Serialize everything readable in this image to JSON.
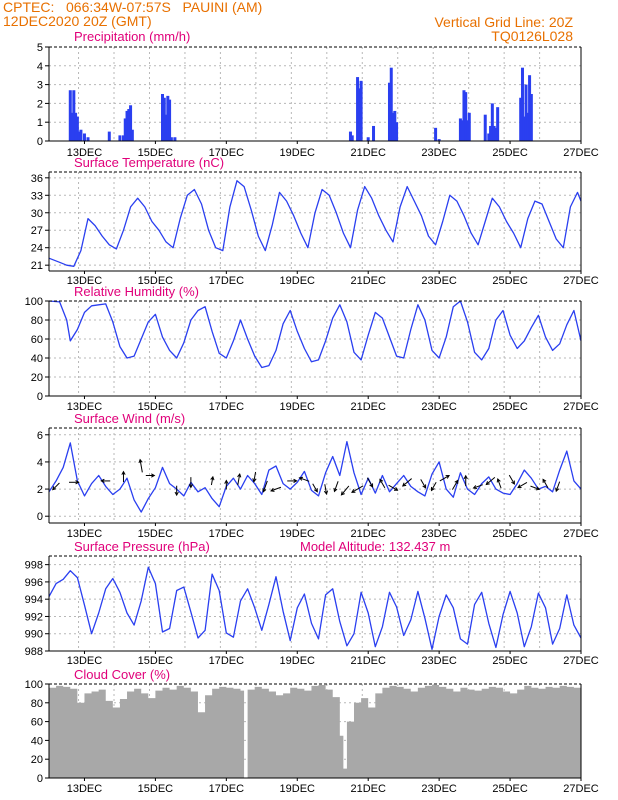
{
  "header": {
    "line1_left": "CPTEC:   066:34W-07:57S   PAUINI (AM)",
    "line2_left": "12DEC2020 20Z (GMT)",
    "line1_right": "Vertical Grid Line: 20Z",
    "line2_right": "TQ0126L028"
  },
  "colors": {
    "header_text": "#e87000",
    "panel_title": "#e0007a",
    "series_line": "#2a3ff0",
    "precip_bar": "#2a3ff0",
    "cloud_fill": "#a8a8a8",
    "grid": "#b8b8b8",
    "wind_arrow": "#000000"
  },
  "x_axis": {
    "unit": "days (December 2020)",
    "start_day": 12.0,
    "end_day": 27.0,
    "tick_days": [
      13,
      15,
      17,
      19,
      21,
      23,
      25,
      27
    ],
    "tick_labels": [
      "13DEC",
      "15DEC",
      "17DEC",
      "19DEC",
      "21DEC",
      "23DEC",
      "25DEC",
      "27DEC"
    ],
    "vertical_grid_days": [
      12.833,
      13.833,
      14.833,
      15.833,
      16.833,
      17.833,
      18.833,
      19.833,
      20.833,
      21.833,
      22.833,
      23.833,
      24.833,
      25.833
    ]
  },
  "chart_data": [
    {
      "id": "precip",
      "type": "bar",
      "title": "Precipitation (mm/h)",
      "ylim": [
        0,
        5
      ],
      "yticks": [
        0,
        1,
        2,
        3,
        4,
        5
      ],
      "grid": true,
      "x": [
        12.6,
        12.65,
        12.7,
        12.75,
        12.8,
        12.85,
        12.9,
        13.0,
        13.1,
        13.7,
        14.0,
        14.1,
        14.15,
        14.2,
        14.25,
        14.3,
        14.35,
        15.2,
        15.25,
        15.3,
        15.35,
        15.4,
        15.45,
        15.55,
        20.5,
        20.55,
        20.7,
        20.75,
        20.8,
        21.0,
        21.15,
        21.6,
        21.65,
        21.7,
        21.75,
        21.8,
        22.9,
        23.0,
        23.6,
        23.65,
        23.7,
        23.75,
        23.8,
        23.85,
        24.3,
        24.4,
        24.45,
        24.5,
        24.55,
        24.6,
        24.65,
        25.3,
        25.35,
        25.4,
        25.45,
        25.5,
        25.55,
        25.6
      ],
      "values": [
        2.7,
        1.5,
        2.7,
        1.5,
        1.3,
        0.5,
        0.6,
        0.4,
        0.2,
        0.5,
        0.3,
        0.3,
        1.2,
        1.6,
        1.7,
        1.9,
        0.6,
        2.5,
        2.3,
        1.4,
        2.4,
        2.2,
        0.2,
        0.2,
        0.5,
        0.3,
        3.4,
        2.8,
        3.2,
        0.2,
        0.8,
        3.1,
        3.9,
        1.5,
        1.6,
        1.0,
        0.7,
        0.1,
        1.2,
        1.1,
        2.7,
        2.6,
        1.1,
        1.5,
        1.4,
        0.4,
        0.8,
        2.0,
        0.8,
        0.7,
        1.8,
        2.3,
        3.9,
        1.3,
        3.0,
        1.5,
        3.5,
        2.5
      ]
    },
    {
      "id": "temperature",
      "type": "line",
      "title": "Surface Temperature (nC)",
      "ylim": [
        20,
        37
      ],
      "yticks": [
        21,
        24,
        27,
        30,
        33,
        36
      ],
      "grid": true,
      "x": [
        12.0,
        12.3,
        12.5,
        12.7,
        12.9,
        13.1,
        13.3,
        13.5,
        13.7,
        13.9,
        14.1,
        14.3,
        14.5,
        14.7,
        14.9,
        15.1,
        15.3,
        15.5,
        15.7,
        15.9,
        16.1,
        16.3,
        16.5,
        16.7,
        16.9,
        17.1,
        17.3,
        17.5,
        17.7,
        17.9,
        18.1,
        18.3,
        18.5,
        18.7,
        18.9,
        19.1,
        19.3,
        19.5,
        19.7,
        19.9,
        20.1,
        20.3,
        20.5,
        20.7,
        20.9,
        21.1,
        21.3,
        21.5,
        21.7,
        21.9,
        22.1,
        22.3,
        22.5,
        22.7,
        22.9,
        23.1,
        23.3,
        23.5,
        23.7,
        23.9,
        24.1,
        24.3,
        24.5,
        24.7,
        24.9,
        25.1,
        25.3,
        25.5,
        25.7,
        25.9,
        26.1,
        26.3,
        26.5,
        26.7,
        26.9,
        27.0
      ],
      "values": [
        22.2,
        21.5,
        21.0,
        20.8,
        23.5,
        29.0,
        27.8,
        26.0,
        24.5,
        23.8,
        27.0,
        31.0,
        32.5,
        31.0,
        28.5,
        27.0,
        25.0,
        24.0,
        29.0,
        33.0,
        34.0,
        31.5,
        27.0,
        24.0,
        23.5,
        31.0,
        35.5,
        34.5,
        30.5,
        26.0,
        23.5,
        28.0,
        33.5,
        32.0,
        29.5,
        26.5,
        24.0,
        30.0,
        34.0,
        33.0,
        30.0,
        26.5,
        24.0,
        30.5,
        34.5,
        32.5,
        29.5,
        27.0,
        25.0,
        31.0,
        34.5,
        32.0,
        29.5,
        26.0,
        24.5,
        28.5,
        33.0,
        32.0,
        29.5,
        26.5,
        24.5,
        28.5,
        32.5,
        31.0,
        28.5,
        26.5,
        24.0,
        29.0,
        32.0,
        31.5,
        28.5,
        25.5,
        24.0,
        31.0,
        33.5,
        32.0
      ]
    },
    {
      "id": "humidity",
      "type": "line",
      "title": "Relative Humidity (%)",
      "ylim": [
        0,
        100
      ],
      "yticks": [
        0,
        20,
        40,
        60,
        80,
        100
      ],
      "grid": true,
      "x": [
        12.0,
        12.3,
        12.5,
        12.6,
        12.8,
        13.0,
        13.2,
        13.4,
        13.6,
        13.8,
        14.0,
        14.2,
        14.4,
        14.6,
        14.8,
        15.0,
        15.2,
        15.4,
        15.6,
        15.8,
        16.0,
        16.2,
        16.4,
        16.6,
        16.8,
        17.0,
        17.2,
        17.4,
        17.6,
        17.8,
        18.0,
        18.2,
        18.4,
        18.6,
        18.8,
        19.0,
        19.2,
        19.4,
        19.6,
        19.8,
        20.0,
        20.2,
        20.4,
        20.6,
        20.8,
        21.0,
        21.2,
        21.4,
        21.6,
        21.8,
        22.0,
        22.2,
        22.4,
        22.6,
        22.8,
        23.0,
        23.2,
        23.4,
        23.6,
        23.8,
        24.0,
        24.2,
        24.4,
        24.6,
        24.8,
        25.0,
        25.2,
        25.4,
        25.6,
        25.8,
        26.0,
        26.2,
        26.4,
        26.6,
        26.8,
        27.0
      ],
      "values": [
        100,
        99,
        80,
        58,
        70,
        88,
        95,
        96,
        97,
        78,
        52,
        40,
        42,
        60,
        78,
        86,
        62,
        48,
        40,
        56,
        80,
        90,
        94,
        68,
        45,
        40,
        58,
        80,
        60,
        42,
        30,
        32,
        48,
        76,
        90,
        68,
        50,
        36,
        38,
        58,
        82,
        96,
        78,
        46,
        38,
        64,
        88,
        82,
        62,
        42,
        40,
        70,
        96,
        80,
        48,
        40,
        62,
        94,
        100,
        78,
        46,
        38,
        50,
        80,
        90,
        64,
        50,
        58,
        72,
        85,
        62,
        48,
        55,
        75,
        90,
        58
      ],
      "x2": [
        13.95,
        15.65,
        17.1,
        18.3,
        19.35,
        20.6,
        21.5,
        22.5,
        23.55,
        24.3,
        25.6,
        26.4,
        26.8
      ],
      "values2": [
        54,
        56,
        44,
        34,
        38,
        42,
        50,
        40,
        46,
        54,
        52,
        38,
        40
      ]
    },
    {
      "id": "wind",
      "type": "line",
      "title": "Surface Wind (m/s)",
      "ylim": [
        -0.5,
        6.5
      ],
      "yticks": [
        0,
        2,
        4,
        6
      ],
      "grid": true,
      "x": [
        12.0,
        12.2,
        12.4,
        12.6,
        12.8,
        13.0,
        13.2,
        13.4,
        13.6,
        13.8,
        14.0,
        14.2,
        14.4,
        14.6,
        14.8,
        15.0,
        15.2,
        15.4,
        15.6,
        15.8,
        16.0,
        16.2,
        16.4,
        16.6,
        16.8,
        17.0,
        17.2,
        17.4,
        17.6,
        17.8,
        18.0,
        18.2,
        18.4,
        18.6,
        18.8,
        19.0,
        19.2,
        19.4,
        19.6,
        19.8,
        20.0,
        20.2,
        20.4,
        20.6,
        20.8,
        21.0,
        21.2,
        21.4,
        21.6,
        21.8,
        22.0,
        22.2,
        22.4,
        22.6,
        22.8,
        23.0,
        23.2,
        23.4,
        23.6,
        23.8,
        24.0,
        24.2,
        24.4,
        24.6,
        24.8,
        25.0,
        25.2,
        25.4,
        25.6,
        25.8,
        26.0,
        26.2,
        26.4,
        26.6,
        26.8,
        27.0
      ],
      "values": [
        1.8,
        2.6,
        3.6,
        5.4,
        2.6,
        1.5,
        2.4,
        3.0,
        2.2,
        1.6,
        2.0,
        2.8,
        1.2,
        0.3,
        1.3,
        2.1,
        3.6,
        2.4,
        2.0,
        1.5,
        2.5,
        1.8,
        2.1,
        1.3,
        0.7,
        2.2,
        2.8,
        2.0,
        3.0,
        2.4,
        1.6,
        3.4,
        3.7,
        2.4,
        2.0,
        2.5,
        3.3,
        1.9,
        1.5,
        3.2,
        4.4,
        3.0,
        5.5,
        3.2,
        1.6,
        2.8,
        1.7,
        3.0,
        1.8,
        2.4,
        3.0,
        2.2,
        1.8,
        1.5,
        3.1,
        4.0,
        2.0,
        1.4,
        3.2,
        2.0,
        1.6,
        2.4,
        2.9,
        2.0,
        1.7,
        1.6,
        2.4,
        3.4,
        2.8,
        2.0,
        2.2,
        1.8,
        3.4,
        4.8,
        2.6,
        2.0
      ],
      "arrows_x": [
        12.2,
        12.7,
        13.6,
        14.1,
        14.6,
        14.85,
        15.6,
        16.0,
        16.6,
        17.0,
        17.35,
        17.8,
        18.1,
        18.4,
        18.85,
        19.2,
        19.5,
        19.8,
        20.1,
        20.35,
        20.7,
        21.05,
        21.4,
        21.7,
        22.1,
        22.55,
        22.85,
        23.15,
        23.45,
        23.75,
        24.1,
        24.45,
        24.7,
        25.05,
        25.35,
        25.7,
        26.0,
        26.35
      ],
      "arrows_y": [
        2.2,
        2.5,
        2.6,
        2.9,
        3.7,
        3.0,
        1.9,
        2.5,
        2.6,
        2.3,
        2.7,
        2.9,
        2.2,
        2.0,
        2.6,
        2.7,
        2.1,
        2.0,
        2.2,
        1.9,
        2.0,
        2.5,
        2.4,
        2.1,
        2.5,
        2.4,
        2.2,
        2.8,
        2.3,
        2.6,
        2.2,
        2.6,
        2.4,
        2.7,
        2.3,
        2.1,
        2.4,
        2.2
      ],
      "arrows_dir_deg": [
        225,
        0,
        180,
        90,
        100,
        0,
        270,
        270,
        80,
        90,
        80,
        260,
        250,
        200,
        0,
        160,
        300,
        280,
        250,
        230,
        210,
        300,
        120,
        330,
        220,
        300,
        240,
        30,
        60,
        90,
        200,
        220,
        110,
        300,
        210,
        340,
        120,
        250
      ],
      "arrows_speed": [
        2.0,
        2.1,
        1.8,
        2.5,
        3.6,
        1.6,
        2.0,
        2.4,
        1.5,
        1.8,
        2.8,
        2.2,
        3.0,
        2.5,
        2.0,
        2.4,
        1.9,
        2.2,
        2.6,
        3.0,
        3.6,
        2.5,
        2.2,
        2.4,
        3.0,
        2.2,
        2.0,
        2.6,
        2.6,
        2.4,
        2.2,
        2.8,
        2.2,
        2.4,
        2.4,
        2.0,
        2.2,
        2.3
      ]
    },
    {
      "id": "pressure",
      "type": "line",
      "title": "Surface Pressure (hPa)",
      "annotation": "Model Altitude: 132.437 m",
      "ylim": [
        988,
        999
      ],
      "yticks": [
        988,
        990,
        992,
        994,
        996,
        998
      ],
      "grid": true,
      "x": [
        12.0,
        12.2,
        12.4,
        12.6,
        12.8,
        13.0,
        13.2,
        13.4,
        13.6,
        13.8,
        14.0,
        14.2,
        14.4,
        14.6,
        14.8,
        15.0,
        15.2,
        15.4,
        15.6,
        15.8,
        16.0,
        16.2,
        16.4,
        16.6,
        16.8,
        17.0,
        17.2,
        17.4,
        17.6,
        17.8,
        18.0,
        18.2,
        18.4,
        18.6,
        18.8,
        19.0,
        19.2,
        19.4,
        19.6,
        19.8,
        20.0,
        20.2,
        20.4,
        20.6,
        20.8,
        21.0,
        21.2,
        21.4,
        21.6,
        21.8,
        22.0,
        22.2,
        22.4,
        22.6,
        22.8,
        23.0,
        23.2,
        23.4,
        23.6,
        23.8,
        24.0,
        24.2,
        24.4,
        24.6,
        24.8,
        25.0,
        25.2,
        25.4,
        25.6,
        25.8,
        26.0,
        26.2,
        26.4,
        26.6,
        26.8,
        27.0
      ],
      "values": [
        994.3,
        995.8,
        996.3,
        997.3,
        996.5,
        993.3,
        990.0,
        992.4,
        995.2,
        996.4,
        994.8,
        992.4,
        991.0,
        993.8,
        997.7,
        995.8,
        990.2,
        990.6,
        995.0,
        995.4,
        992.5,
        989.5,
        990.4,
        996.9,
        995.0,
        990.1,
        989.6,
        993.8,
        995.2,
        993.0,
        990.4,
        993.4,
        996.6,
        992.6,
        989.2,
        993.0,
        994.6,
        991.2,
        989.4,
        994.5,
        995.2,
        991.4,
        988.6,
        990.0,
        994.8,
        992.4,
        988.5,
        990.8,
        994.8,
        993.1,
        989.8,
        991.6,
        994.9,
        991.8,
        988.2,
        992.0,
        994.5,
        993.0,
        989.4,
        988.8,
        993.4,
        994.8,
        991.2,
        988.4,
        992.2,
        994.9,
        992.4,
        988.5,
        990.8,
        994.7,
        993.0,
        988.8,
        990.6,
        994.5,
        991.0,
        989.5
      ]
    },
    {
      "id": "cloud",
      "type": "area",
      "title": "Cloud Cover (%)",
      "ylim": [
        0,
        100
      ],
      "yticks": [
        0,
        20,
        40,
        60,
        80,
        100
      ],
      "grid": true,
      "x": [
        12.0,
        12.2,
        12.4,
        12.6,
        12.8,
        13.0,
        13.2,
        13.4,
        13.6,
        13.8,
        14.0,
        14.2,
        14.4,
        14.6,
        14.8,
        15.0,
        15.2,
        15.4,
        15.6,
        15.8,
        16.0,
        16.2,
        16.4,
        16.6,
        16.8,
        17.0,
        17.2,
        17.4,
        17.5,
        17.6,
        17.8,
        18.0,
        18.2,
        18.4,
        18.6,
        18.8,
        19.0,
        19.2,
        19.4,
        19.6,
        19.8,
        20.0,
        20.2,
        20.3,
        20.4,
        20.6,
        20.8,
        21.0,
        21.2,
        21.4,
        21.6,
        21.8,
        22.0,
        22.2,
        22.4,
        22.6,
        22.8,
        23.0,
        23.2,
        23.4,
        23.6,
        23.8,
        24.0,
        24.2,
        24.4,
        24.6,
        24.8,
        25.0,
        25.2,
        25.4,
        25.6,
        25.8,
        26.0,
        26.2,
        26.4,
        26.6,
        26.8,
        27.0
      ],
      "values": [
        96,
        98,
        97,
        95,
        80,
        90,
        92,
        94,
        82,
        75,
        84,
        92,
        95,
        90,
        85,
        93,
        96,
        94,
        98,
        96,
        92,
        70,
        88,
        95,
        97,
        96,
        95,
        93,
        0,
        94,
        97,
        95,
        92,
        88,
        90,
        96,
        95,
        93,
        98,
        99,
        94,
        86,
        45,
        10,
        60,
        80,
        85,
        75,
        90,
        96,
        98,
        97,
        95,
        92,
        96,
        98,
        99,
        97,
        95,
        92,
        96,
        94,
        93,
        95,
        97,
        96,
        92,
        90,
        94,
        98,
        96,
        95,
        97,
        96,
        98,
        97,
        96,
        95
      ]
    }
  ]
}
